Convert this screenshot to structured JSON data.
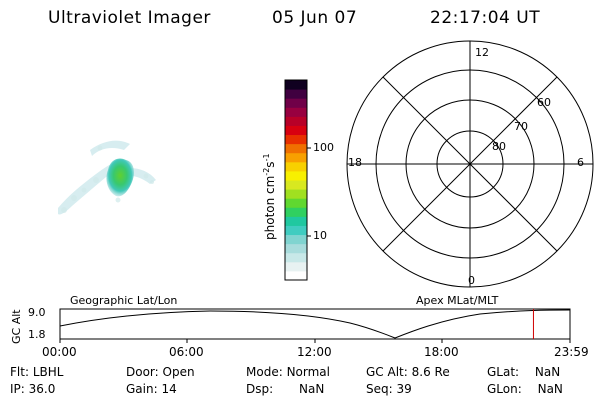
{
  "header": {
    "instrument": "Ultraviolet Imager",
    "date": "05 Jun 07",
    "time": "22:17:04 UT"
  },
  "colorbar": {
    "unit_label": "photon cm",
    "unit_exp1": "-2",
    "unit_s": "s",
    "unit_exp2": "-1",
    "ticks": [
      "100",
      "10"
    ],
    "colors": [
      "#ffffff",
      "#e8f2f2",
      "#c8e8e8",
      "#a8dcdc",
      "#80d4d0",
      "#40ccc0",
      "#20c8a0",
      "#30d060",
      "#60d830",
      "#a0e020",
      "#d8e820",
      "#f8f000",
      "#f8d000",
      "#f8a000",
      "#f07000",
      "#e83000",
      "#d80010",
      "#b80028",
      "#980040",
      "#700048",
      "#400040",
      "#100020"
    ]
  },
  "polar": {
    "mlt_labels": {
      "top": "12",
      "bottom": "0",
      "left": "18",
      "right": "6"
    },
    "lat_labels": [
      "60",
      "70",
      "80"
    ]
  },
  "timeline": {
    "left_title": "Geographic Lat/Lon",
    "right_title": "Apex MLat/MLT",
    "axis_label": "GC Alt",
    "y_ticks": [
      "9.0",
      "1.8"
    ],
    "x_ticks": [
      "00:00",
      "06:00",
      "12:00",
      "18:00",
      "23:59"
    ],
    "marker_time_hours": 22.28
  },
  "status": {
    "flt": {
      "label": "Flt:",
      "value": "LBHL"
    },
    "ip": {
      "label": "IP:",
      "value": "36.0"
    },
    "door": {
      "label": "Door:",
      "value": "Open"
    },
    "gain": {
      "label": "Gain:",
      "value": "14"
    },
    "mode": {
      "label": "Mode:",
      "value": "Normal"
    },
    "dsp": {
      "label": "Dsp:",
      "value": "NaN"
    },
    "gcalt": {
      "label": "GC Alt:",
      "value": "8.6 Re"
    },
    "seq": {
      "label": "Seq:",
      "value": "39"
    },
    "glat": {
      "label": "GLat:",
      "value": "NaN"
    },
    "glon": {
      "label": "GLon:",
      "value": "NaN"
    }
  },
  "accent": {
    "marker": "#d00000"
  }
}
